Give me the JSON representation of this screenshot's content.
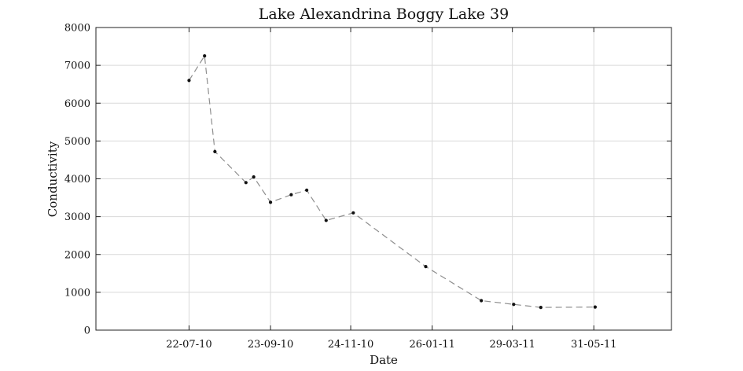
{
  "chart_data": {
    "type": "line",
    "title": "Lake Alexandrina Boggy Lake 39",
    "xlabel": "Date",
    "ylabel": "Conductivity",
    "x_ticks": [
      "22-07-10",
      "23-09-10",
      "24-11-10",
      "26-01-11",
      "29-03-11",
      "31-05-11"
    ],
    "y_ticks": [
      "0",
      "1000",
      "2000",
      "3000",
      "4000",
      "5000",
      "6000",
      "7000",
      "8000"
    ],
    "xlim": [
      "2010-05-11",
      "2011-07-30"
    ],
    "ylim": [
      0,
      8000
    ],
    "grid": true,
    "series": [
      {
        "x": [
          "2010-07-22",
          "2010-08-03",
          "2010-08-11",
          "2010-09-04",
          "2010-09-10",
          "2010-09-23",
          "2010-10-09",
          "2010-10-21",
          "2010-11-05",
          "2010-11-26",
          "2011-01-21",
          "2011-03-05",
          "2011-03-30",
          "2011-04-20",
          "2011-06-01"
        ],
        "y": [
          6600,
          7250,
          4720,
          3900,
          4050,
          3380,
          3580,
          3700,
          2900,
          3100,
          1680,
          780,
          680,
          600,
          610
        ]
      }
    ]
  }
}
